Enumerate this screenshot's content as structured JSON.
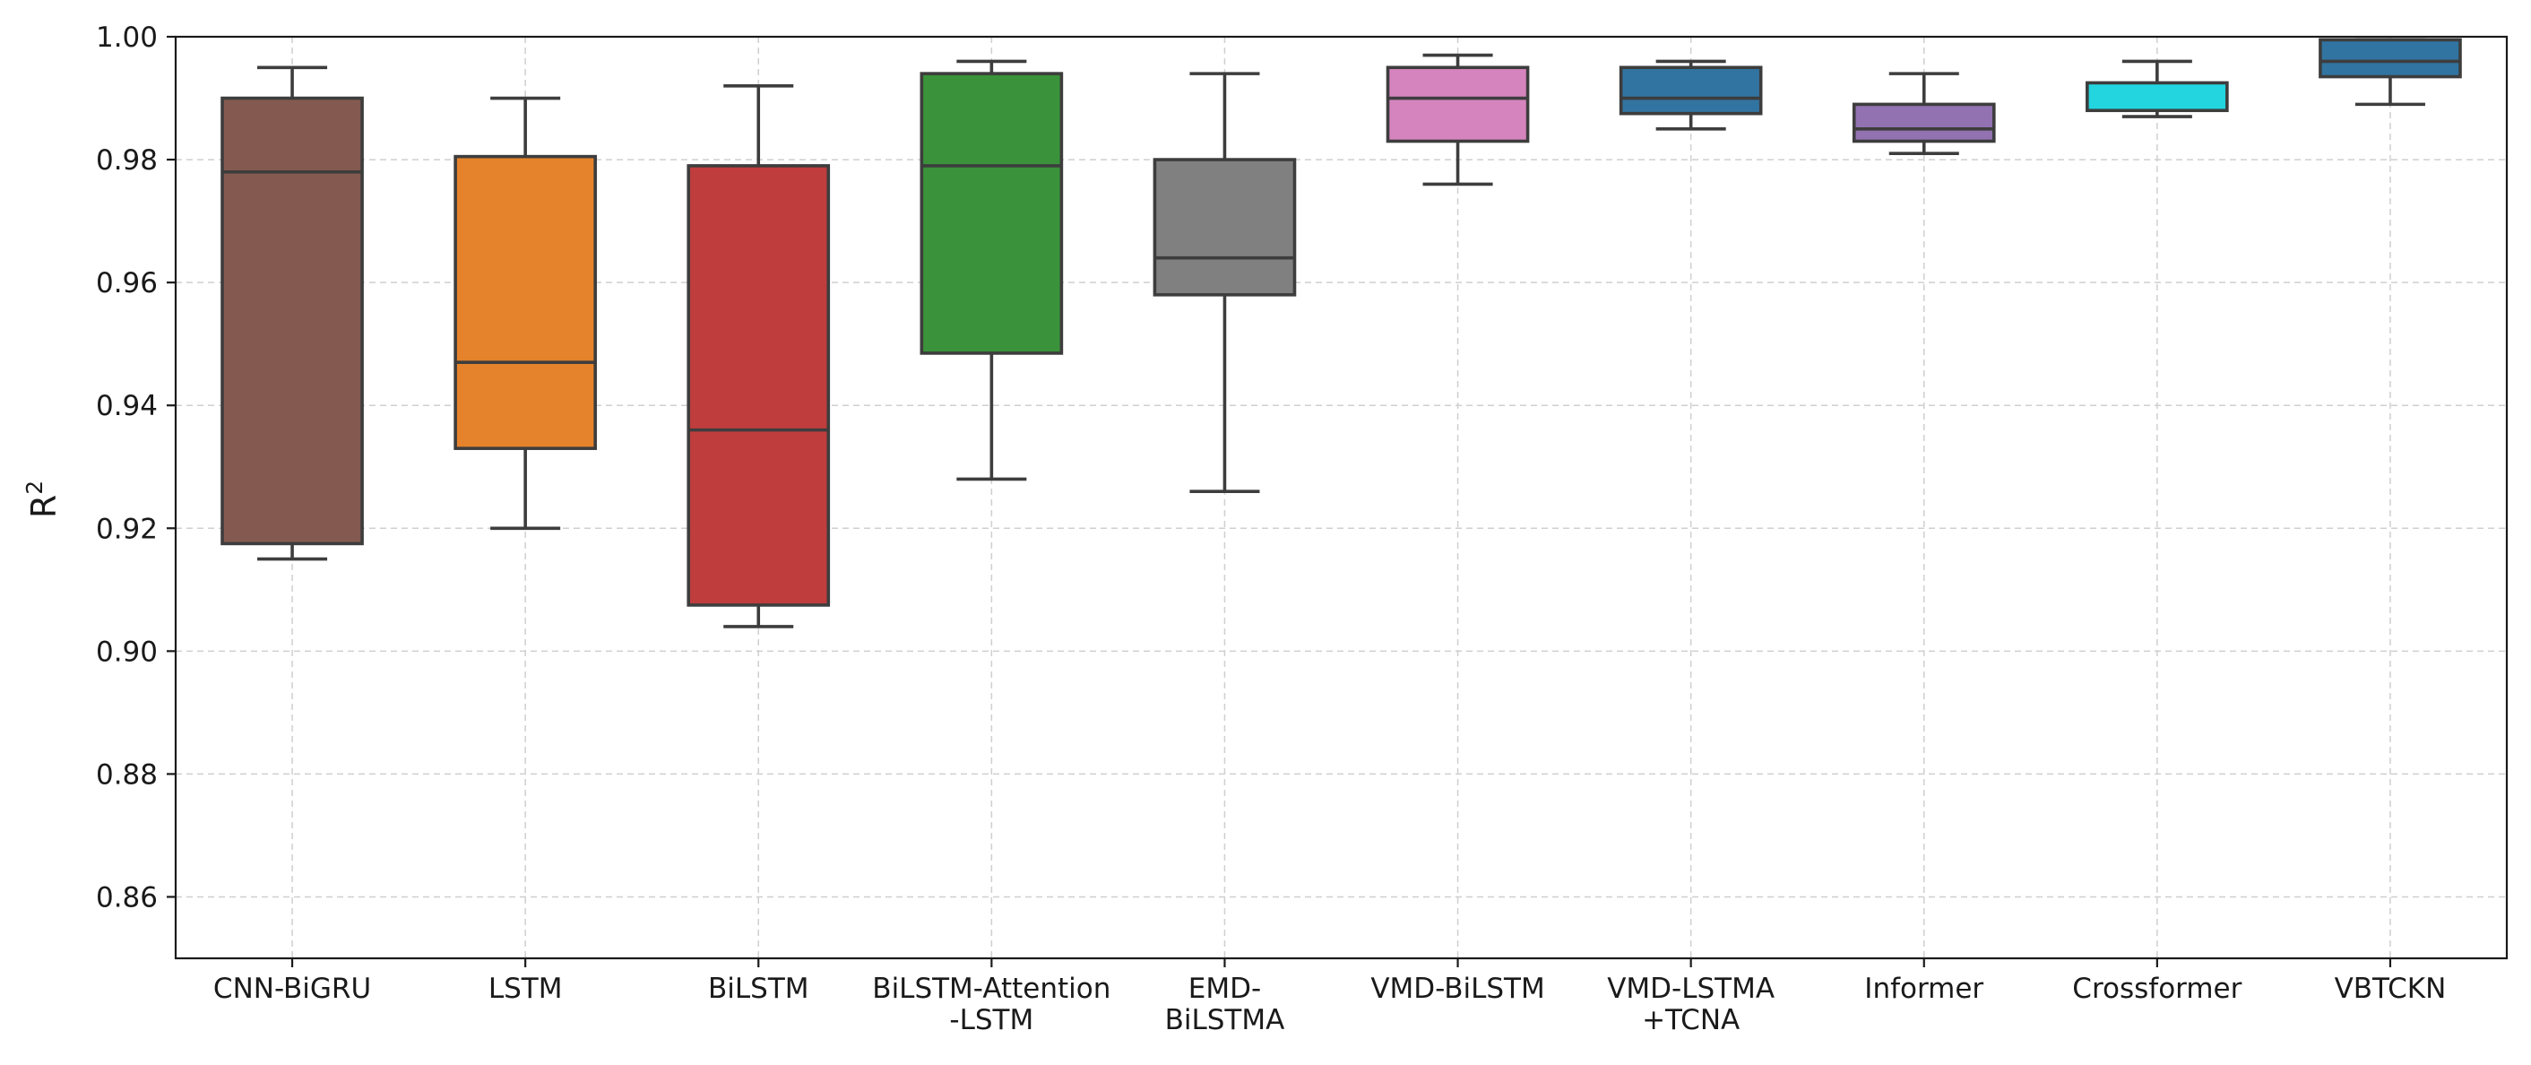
{
  "chart_data": {
    "type": "box",
    "title": "",
    "xlabel": "",
    "ylabel": "R",
    "ylabel_superscript": "2",
    "ylim": [
      0.85,
      1.0
    ],
    "yticks": [
      0.86,
      0.88,
      0.9,
      0.92,
      0.94,
      0.96,
      0.98,
      1.0
    ],
    "ytick_labels": [
      "0.86",
      "0.88",
      "0.90",
      "0.92",
      "0.94",
      "0.96",
      "0.98",
      "1.00"
    ],
    "grid": true,
    "categories": [
      {
        "label_lines": [
          "CNN-BiGRU"
        ],
        "color": "#845a50",
        "min": 0.915,
        "q1": 0.9175,
        "median": 0.978,
        "q3": 0.99,
        "max": 0.995
      },
      {
        "label_lines": [
          "LSTM"
        ],
        "color": "#e5832c",
        "min": 0.92,
        "q1": 0.933,
        "median": 0.947,
        "q3": 0.9805,
        "max": 0.99
      },
      {
        "label_lines": [
          "BiLSTM"
        ],
        "color": "#c03d3d",
        "min": 0.904,
        "q1": 0.9075,
        "median": 0.936,
        "q3": 0.979,
        "max": 0.992
      },
      {
        "label_lines": [
          "BiLSTM-Attention",
          "-LSTM"
        ],
        "color": "#3a923a",
        "min": 0.928,
        "q1": 0.9485,
        "median": 0.979,
        "q3": 0.994,
        "max": 0.996
      },
      {
        "label_lines": [
          "EMD-",
          "BiLSTMA"
        ],
        "color": "#808080",
        "min": 0.926,
        "q1": 0.958,
        "median": 0.964,
        "q3": 0.98,
        "max": 0.994
      },
      {
        "label_lines": [
          "VMD-BiLSTM"
        ],
        "color": "#d684be",
        "min": 0.976,
        "q1": 0.983,
        "median": 0.99,
        "q3": 0.995,
        "max": 0.997
      },
      {
        "label_lines": [
          "VMD-LSTMA",
          "+TCNA"
        ],
        "color": "#3274a1",
        "min": 0.985,
        "q1": 0.9875,
        "median": 0.99,
        "q3": 0.995,
        "max": 0.996
      },
      {
        "label_lines": [
          "Informer"
        ],
        "color": "#9372b2",
        "min": 0.981,
        "q1": 0.983,
        "median": 0.985,
        "q3": 0.989,
        "max": 0.994
      },
      {
        "label_lines": [
          "Crossformer"
        ],
        "color": "#22d5de",
        "min": 0.987,
        "q1": 0.988,
        "median": 0.988,
        "q3": 0.9925,
        "max": 0.996
      },
      {
        "label_lines": [
          "VBTCKN"
        ],
        "color": "#3274a1",
        "min": 0.989,
        "q1": 0.9935,
        "median": 0.996,
        "q3": 0.9995,
        "max": 0.9995
      }
    ]
  }
}
